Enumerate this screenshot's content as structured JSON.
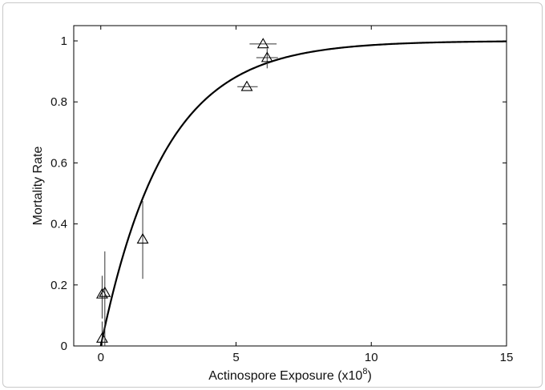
{
  "chart_data": {
    "type": "scatter",
    "title": "",
    "xlabel": "Actinospore Exposure (x10",
    "xlabel_sup": "8",
    "xlabel_end": ")",
    "ylabel": "Mortality Rate",
    "xlim": [
      -1,
      15
    ],
    "ylim": [
      0,
      1.05
    ],
    "xticks": [
      0,
      5,
      10,
      15
    ],
    "yticks": [
      0,
      0.2,
      0.4,
      0.6,
      0.8,
      1
    ],
    "xtick_labels": [
      "0",
      "5",
      "10",
      "15"
    ],
    "ytick_labels": [
      "0",
      "0.2",
      "0.4",
      "0.6",
      "0.8",
      "1"
    ],
    "grid": false,
    "series": [
      {
        "kind": "points-with-error-bars",
        "marker": "triangle",
        "points": [
          {
            "x": 0.05,
            "y": 0.025,
            "ylo": 0.0,
            "yhi": 0.08,
            "xlo": 0.05,
            "xhi": 0.05
          },
          {
            "x": 0.05,
            "y": 0.17,
            "ylo": 0.09,
            "yhi": 0.23,
            "xlo": 0.05,
            "xhi": 0.05
          },
          {
            "x": 0.15,
            "y": 0.175,
            "ylo": 0.0,
            "yhi": 0.31,
            "xlo": 0.15,
            "xhi": 0.15
          },
          {
            "x": 1.55,
            "y": 0.35,
            "ylo": 0.22,
            "yhi": 0.475,
            "xlo": 1.55,
            "xhi": 1.55
          },
          {
            "x": 5.4,
            "y": 0.85,
            "ylo": 0.85,
            "yhi": 0.85,
            "xlo": 5.05,
            "xhi": 5.8
          },
          {
            "x": 6.0,
            "y": 0.99,
            "ylo": 0.99,
            "yhi": 0.99,
            "xlo": 5.5,
            "xhi": 6.5
          },
          {
            "x": 6.15,
            "y": 0.945,
            "ylo": 0.91,
            "yhi": 0.975,
            "xlo": 5.75,
            "xhi": 6.55
          }
        ]
      },
      {
        "kind": "fitted-curve",
        "equation": "y = 1 - exp(-0.427 x)",
        "x_start": 0,
        "x_end": 15
      }
    ]
  }
}
